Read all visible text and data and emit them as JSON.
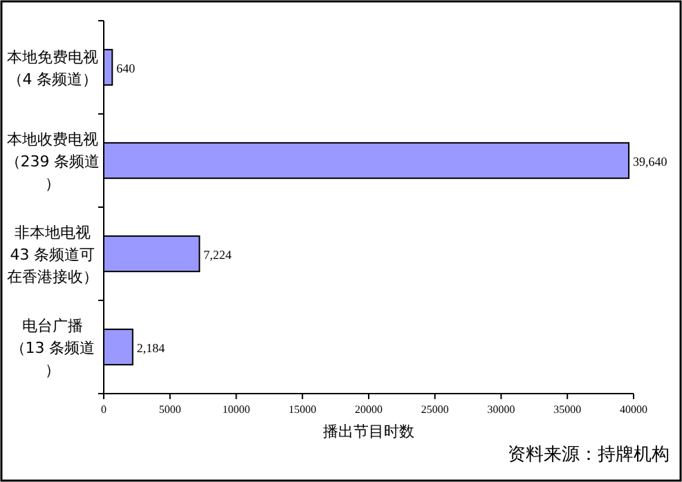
{
  "chart_data": {
    "type": "bar",
    "orientation": "horizontal",
    "categories": [
      "本地免费电视（4 条频道）",
      "本地收费电视（239 条频道）",
      "非本地电视43 条频道可在香港接收）",
      "电台广播（13 条频道）"
    ],
    "values": [
      640,
      39640,
      7224,
      2184
    ],
    "value_labels": [
      "640",
      "39,640",
      "7,224",
      "2,184"
    ],
    "color": "#9999ff",
    "xlim": [
      0,
      40000
    ],
    "xticks": [
      0,
      5000,
      10000,
      15000,
      20000,
      25000,
      30000,
      35000,
      40000
    ],
    "xlabel": "播出节目时数",
    "annotations": [
      "资料来源：持牌机构"
    ],
    "grid": false
  }
}
